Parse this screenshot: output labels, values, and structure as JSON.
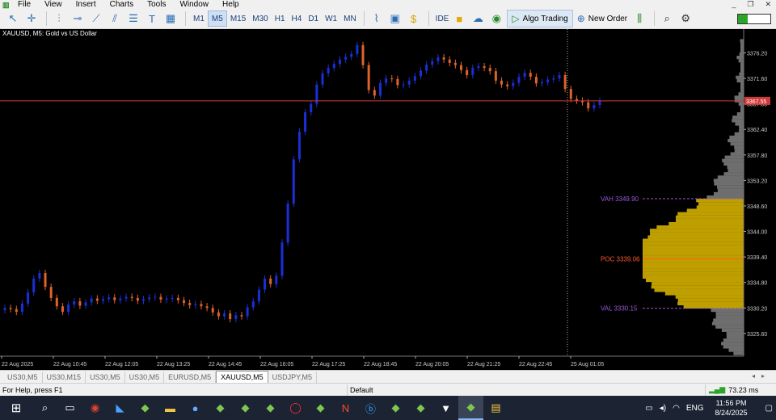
{
  "menubar": {
    "items": [
      "File",
      "View",
      "Insert",
      "Charts",
      "Tools",
      "Window",
      "Help"
    ]
  },
  "toolbar": {
    "timeframes": [
      "M1",
      "M5",
      "M15",
      "M30",
      "H1",
      "H4",
      "D1",
      "W1",
      "MN"
    ],
    "active_timeframe": "M5",
    "ide_label": "IDE",
    "algo_label": "Algo Trading",
    "new_order_label": "New Order"
  },
  "chart": {
    "title": "XAUUSD, M5:  Gold vs US Dollar",
    "current_price": "3367.55",
    "price_labels": [
      "3376.20",
      "3371.60",
      "3367.00",
      "3362.40",
      "3357.80",
      "3353.20",
      "3348.60",
      "3344.00",
      "3339.40",
      "3334.80",
      "3330.20",
      "3325.60"
    ],
    "time_labels": [
      "22 Aug 2025",
      "22 Aug 10:45",
      "22 Aug 12:05",
      "22 Aug 13:25",
      "22 Aug 14:45",
      "22 Aug 16:05",
      "22 Aug 17:25",
      "22 Aug 18:45",
      "22 Aug 20:05",
      "22 Aug 21:25",
      "22 Aug 22:45",
      "25 Aug 01:05"
    ],
    "vah_label": "VAH 3349.90",
    "poc_label": "POC 3339.06",
    "val_label": "VAL 3330.15",
    "colors": {
      "bull": "#1a2fd6",
      "bear": "#e0622a",
      "price_line": "#d23a3a",
      "vah": "#9b59d9",
      "poc": "#ff5a2a",
      "profile_gold": "#c9a800",
      "profile_gray": "#7a7a7a"
    }
  },
  "chart_data": {
    "type": "candlestick",
    "title": "XAUUSD, M5:  Gold vs US Dollar",
    "ylim": [
      3321.5,
      3380.5
    ],
    "close_series": [
      3330.2,
      3330,
      3329.5,
      3331,
      3333,
      3335.5,
      3336.5,
      3334,
      3332,
      3330.5,
      3329.5,
      3330.8,
      3331.4,
      3330.6,
      3331.2,
      3331.9,
      3331.5,
      3331.8,
      3332.1,
      3331.6,
      3331.9,
      3332.2,
      3332,
      3331.5,
      3331.8,
      3332.1,
      3332.2,
      3331.7,
      3331.9,
      3332,
      3331.6,
      3331.1,
      3330.7,
      3330.9,
      3330.5,
      3330.2,
      3329.4,
      3328.7,
      3329.2,
      3328.2,
      3328.9,
      3328.7,
      3330.3,
      3331.4,
      3333.5,
      3335.5,
      3334.5,
      3336,
      3342,
      3349,
      3357,
      3362,
      3365.5,
      3367,
      3370.5,
      3372.5,
      3373.5,
      3374.2,
      3375,
      3375.5,
      3376,
      3377.6,
      3374,
      3369.5,
      3368.5,
      3370.8,
      3371.6,
      3371.5,
      3370.4,
      3370.5,
      3371.2,
      3372,
      3373,
      3374.1,
      3374.7,
      3375.4,
      3375,
      3374.4,
      3374,
      3373.1,
      3372.2,
      3373.5,
      3373.8,
      3373.5,
      3372.9,
      3371.2,
      3370.5,
      3370.2,
      3370.8,
      3371.9,
      3372.6,
      3371.9,
      3370.7,
      3370.9,
      3371.4,
      3371.6,
      3372.2,
      3369.7,
      3367.9,
      3367.6,
      3367.3,
      3366.2,
      3366.8,
      3367.55
    ],
    "value_area": {
      "vah": 3349.9,
      "poc": 3339.06,
      "val": 3330.15
    },
    "current_price": 3367.55
  },
  "tabs": [
    "US30,M5",
    "US30,M15",
    "US30,M5",
    "US30,M5",
    "EURUSD,M5",
    "XAUUSD,M5",
    "USDJPY,M5"
  ],
  "active_tab": 5,
  "status": {
    "help": "For Help, press F1",
    "profile": "Default",
    "ping": "73.23 ms"
  },
  "taskbar": {
    "time": "11:56 PM",
    "date": "8/24/2025",
    "lang": "ENG"
  }
}
